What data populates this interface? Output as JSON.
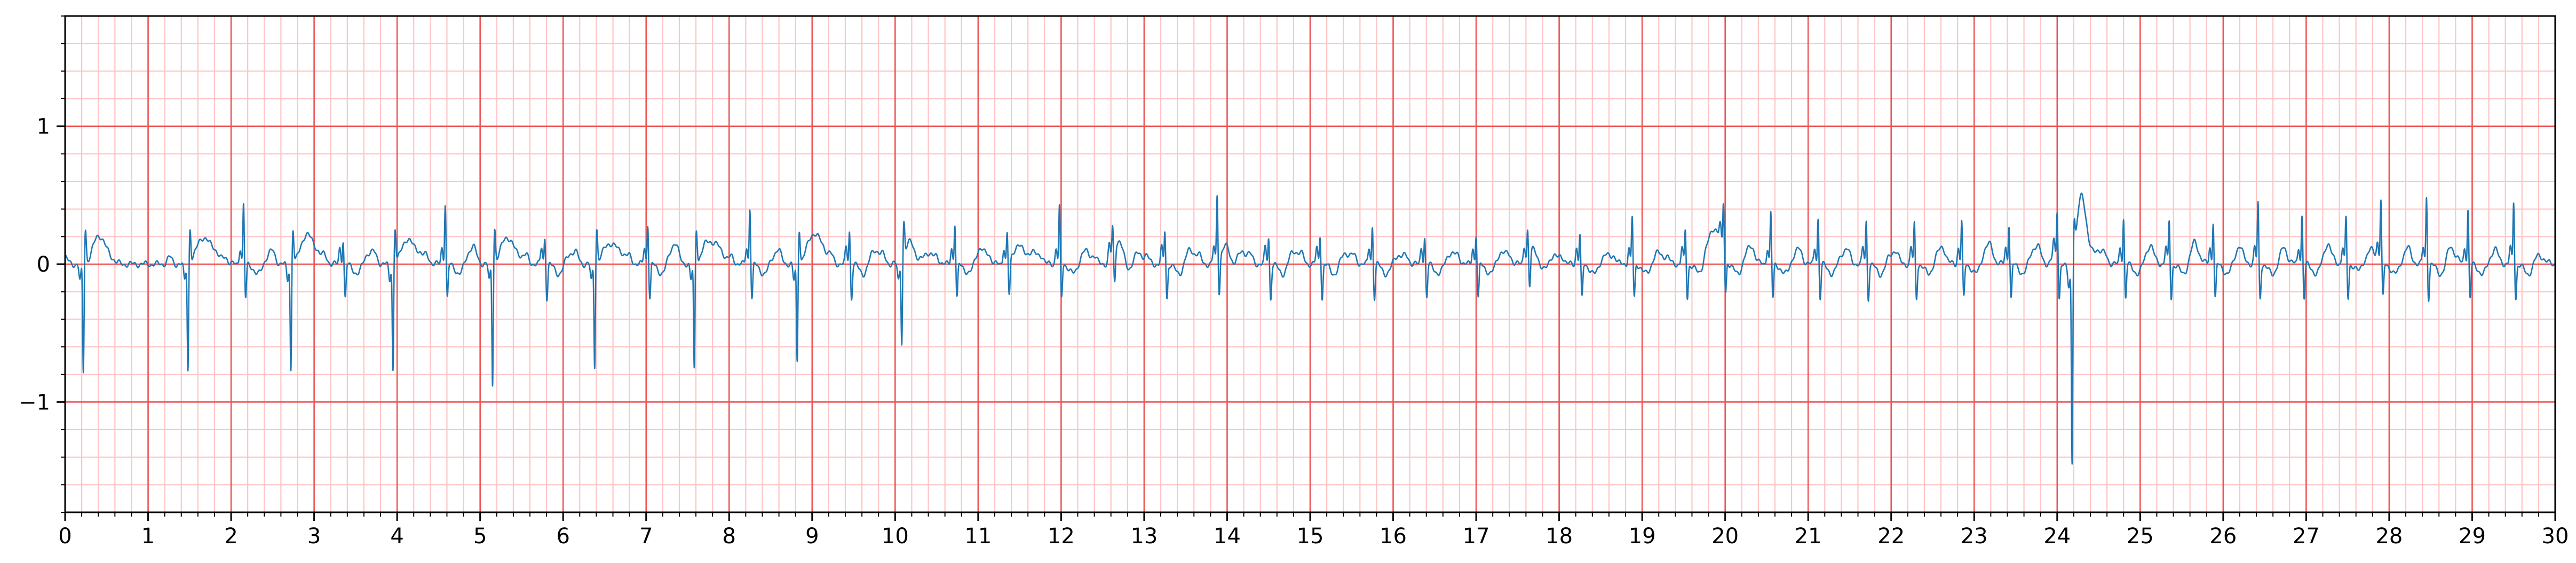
{
  "chart_data": {
    "type": "line",
    "title": "",
    "xlabel": "",
    "ylabel": "",
    "xlim": [
      0,
      30
    ],
    "ylim": [
      -1.8,
      1.8
    ],
    "x_major_ticks": [
      0,
      1,
      2,
      3,
      4,
      5,
      6,
      7,
      8,
      9,
      10,
      11,
      12,
      13,
      14,
      15,
      16,
      17,
      18,
      19,
      20,
      21,
      22,
      23,
      24,
      25,
      26,
      27,
      28,
      29,
      30
    ],
    "x_tick_labels": [
      "0",
      "1",
      "2",
      "3",
      "4",
      "5",
      "6",
      "7",
      "8",
      "9",
      "10",
      "11",
      "12",
      "13",
      "14",
      "15",
      "16",
      "17",
      "18",
      "19",
      "20",
      "21",
      "22",
      "23",
      "24",
      "25",
      "26",
      "27",
      "28",
      "29",
      "30"
    ],
    "x_minor_step": 0.2,
    "y_major_ticks": [
      -1,
      0,
      1
    ],
    "y_tick_labels": [
      "−1",
      "0",
      "1"
    ],
    "y_minor_step": 0.2,
    "grid": "on (ECG paper: major and minor)",
    "colors": {
      "major_grid": "#ee5555",
      "minor_grid": "#ffc4c4",
      "trace": "#1f77b4",
      "frame": "#000000"
    },
    "series": [
      {
        "beats": [
          {
            "t": 0.22,
            "r": -0.8,
            "amp": 0.1
          },
          {
            "t": 1.48,
            "r": -0.78,
            "amp": 0.1
          },
          {
            "t": 2.15,
            "r": 0.44,
            "amp": 0.18
          },
          {
            "t": 2.72,
            "r": -0.78,
            "amp": 0.1
          },
          {
            "t": 3.35,
            "r": 0.18,
            "amp": 0.1
          },
          {
            "t": 3.95,
            "r": -0.78,
            "amp": 0.1
          },
          {
            "t": 4.58,
            "r": 0.45,
            "amp": 0.2
          },
          {
            "t": 5.15,
            "r": -0.88,
            "amp": 0.1
          },
          {
            "t": 5.78,
            "r": 0.2,
            "amp": 0.1
          },
          {
            "t": 6.38,
            "r": -0.75,
            "amp": 0.1
          },
          {
            "t": 7.02,
            "r": 0.3,
            "amp": 0.1
          },
          {
            "t": 7.58,
            "r": -0.78,
            "amp": 0.1
          },
          {
            "t": 8.25,
            "r": 0.42,
            "amp": 0.15
          },
          {
            "t": 8.82,
            "r": -0.72,
            "amp": 0.1
          },
          {
            "t": 9.45,
            "r": 0.25,
            "amp": 0.1
          },
          {
            "t": 10.08,
            "r": -0.6,
            "amp": 0.1
          },
          {
            "t": 10.72,
            "r": 0.3,
            "amp": 0.1
          },
          {
            "t": 11.35,
            "r": 0.22,
            "amp": 0.1
          },
          {
            "t": 11.98,
            "r": 0.42,
            "amp": 0.15
          },
          {
            "t": 12.62,
            "r": 0.2,
            "amp": 0.1
          },
          {
            "t": 13.25,
            "r": 0.25,
            "amp": 0.1
          },
          {
            "t": 13.88,
            "r": 0.49,
            "amp": 0.12
          },
          {
            "t": 14.5,
            "r": 0.2,
            "amp": 0.1
          },
          {
            "t": 15.12,
            "r": 0.22,
            "amp": 0.1
          },
          {
            "t": 15.75,
            "r": 0.28,
            "amp": 0.1
          },
          {
            "t": 16.38,
            "r": 0.2,
            "amp": 0.1
          },
          {
            "t": 17.0,
            "r": 0.22,
            "amp": 0.1
          },
          {
            "t": 17.62,
            "r": 0.2,
            "amp": 0.1
          },
          {
            "t": 18.25,
            "r": 0.22,
            "amp": 0.1
          },
          {
            "t": 18.88,
            "r": 0.35,
            "amp": 0.1
          },
          {
            "t": 19.52,
            "r": 0.25,
            "amp": 0.1
          },
          {
            "t": 19.98,
            "r": 0.36,
            "amp": 0.1
          },
          {
            "t": 20.55,
            "r": 0.38,
            "amp": 0.1
          },
          {
            "t": 21.12,
            "r": 0.34,
            "amp": 0.1
          },
          {
            "t": 21.7,
            "r": 0.32,
            "amp": 0.1
          },
          {
            "t": 22.28,
            "r": 0.3,
            "amp": 0.1
          },
          {
            "t": 22.85,
            "r": 0.32,
            "amp": 0.1
          },
          {
            "t": 23.42,
            "r": 0.3,
            "amp": 0.1
          },
          {
            "t": 24.0,
            "r": 0.38,
            "amp": 0.1
          },
          {
            "t": 24.18,
            "r": -1.44,
            "amp": 0.1
          },
          {
            "t": 24.8,
            "r": 0.34,
            "amp": 0.1
          },
          {
            "t": 25.35,
            "r": 0.32,
            "amp": 0.1
          },
          {
            "t": 25.88,
            "r": 0.32,
            "amp": 0.1
          },
          {
            "t": 26.42,
            "r": 0.45,
            "amp": 0.12
          },
          {
            "t": 26.95,
            "r": 0.36,
            "amp": 0.1
          },
          {
            "t": 27.48,
            "r": 0.34,
            "amp": 0.1
          },
          {
            "t": 27.9,
            "r": 0.46,
            "amp": 0.12
          },
          {
            "t": 28.45,
            "r": 0.5,
            "amp": 0.12
          },
          {
            "t": 28.95,
            "r": 0.4,
            "amp": 0.1
          },
          {
            "t": 29.5,
            "r": 0.46,
            "amp": 0.12
          }
        ],
        "t_waves": [
          {
            "t": 0.4,
            "h": 0.28
          },
          {
            "t": 1.65,
            "h": 0.26
          },
          {
            "t": 2.9,
            "h": 0.28
          },
          {
            "t": 4.12,
            "h": 0.25
          },
          {
            "t": 5.32,
            "h": 0.27
          },
          {
            "t": 6.55,
            "h": 0.22
          },
          {
            "t": 7.75,
            "h": 0.24
          },
          {
            "t": 9.0,
            "h": 0.28
          },
          {
            "t": 10.2,
            "h": 0.2
          },
          {
            "t": 11.5,
            "h": 0.2
          },
          {
            "t": 12.7,
            "h": 0.18
          },
          {
            "t": 14.0,
            "h": 0.16
          },
          {
            "t": 17.7,
            "h": 0.12
          },
          {
            "t": 19.9,
            "h": 0.2
          },
          {
            "t": 24.3,
            "h": 0.46
          }
        ],
        "baseline": 0.0
      }
    ]
  }
}
